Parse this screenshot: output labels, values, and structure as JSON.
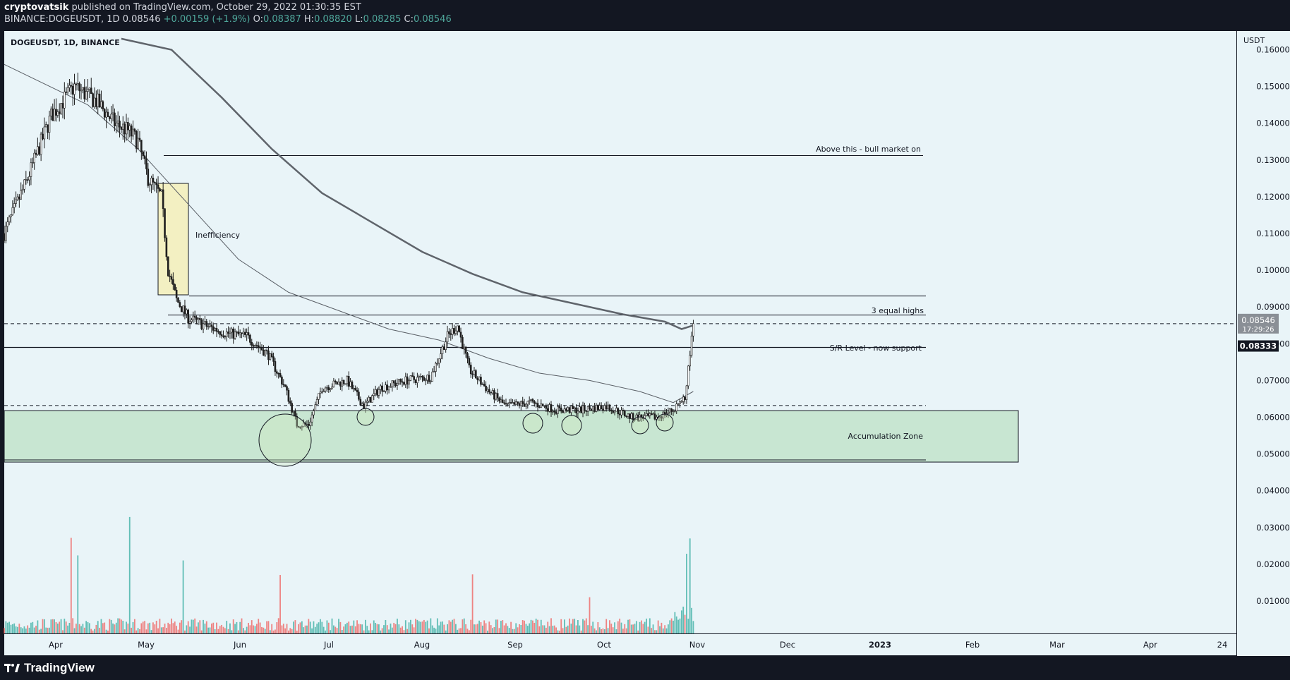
{
  "header": {
    "author": "cryptovatsik",
    "published": " published on TradingView.com, October 29, 2022 01:30:35 EST",
    "symbol_line": "BINANCE:DOGEUSDT, 1D",
    "last": "0.08546",
    "change": "+0.00159 (+1.9%)",
    "o_label": "O:",
    "o": "0.08387",
    "h_label": "H:",
    "h": "0.08820",
    "l_label": "L:",
    "l": "0.08285",
    "c_label": "C:",
    "c": "0.08546"
  },
  "chart_title": "DOGEUSDT, 1D, BINANCE",
  "footer": {
    "brand": "TradingView"
  },
  "colors": {
    "background": "#e9f4f8",
    "up": "#26a69a",
    "down": "#ef5350",
    "candle_body": "#1e1e1e",
    "zone_fill": "#c8e6d2",
    "inefficiency_fill": "#f3f0c2"
  },
  "chart_data": {
    "type": "candlestick",
    "title": "DOGEUSDT, 1D, BINANCE",
    "y_axis_label": "USDT",
    "y_ticks": [
      "0.16000",
      "0.15000",
      "0.14000",
      "0.13000",
      "0.12000",
      "0.11000",
      "0.10000",
      "0.09000",
      "0.08000",
      "0.07000",
      "0.06000",
      "0.05000",
      "0.04000",
      "0.03000",
      "0.02000",
      "0.01000"
    ],
    "x_ticks": [
      "Apr",
      "May",
      "Jun",
      "Jul",
      "Aug",
      "Sep",
      "Oct",
      "Nov",
      "Dec",
      "2023",
      "Feb",
      "Mar",
      "Apr",
      "24"
    ],
    "price_label": "0.08546",
    "countdown": "17:29:26",
    "level_label": "0.08333",
    "annotations": {
      "bull_market": "Above this - bull market on",
      "equal_highs": "3 equal highs",
      "sr_level": "S/R Level - now support",
      "inefficiency": "Inefficiency",
      "accumulation": "Accumulation Zone"
    },
    "levels": {
      "bull_market": 0.1312,
      "top_line": 0.093,
      "equal_highs": 0.0878,
      "current": 0.08546,
      "sr_support": 0.079,
      "dashed_support": 0.0632,
      "zone_top": 0.0618,
      "zone_bottom": 0.0478
    },
    "price_path": [
      [
        0,
        0.11
      ],
      [
        14,
        0.125
      ],
      [
        28,
        0.142
      ],
      [
        42,
        0.15
      ],
      [
        55,
        0.146
      ],
      [
        66,
        0.14
      ],
      [
        74,
        0.138
      ],
      [
        80,
        0.135
      ],
      [
        86,
        0.125
      ],
      [
        94,
        0.12
      ],
      [
        98,
        0.1
      ],
      [
        103,
        0.092
      ],
      [
        110,
        0.087
      ],
      [
        120,
        0.085
      ],
      [
        132,
        0.083
      ],
      [
        145,
        0.082
      ],
      [
        158,
        0.077
      ],
      [
        168,
        0.068
      ],
      [
        175,
        0.058
      ],
      [
        182,
        0.058
      ],
      [
        190,
        0.068
      ],
      [
        205,
        0.07
      ],
      [
        215,
        0.063
      ],
      [
        225,
        0.068
      ],
      [
        240,
        0.07
      ],
      [
        255,
        0.071
      ],
      [
        265,
        0.082
      ],
      [
        271,
        0.085
      ],
      [
        278,
        0.073
      ],
      [
        290,
        0.067
      ],
      [
        300,
        0.063
      ],
      [
        315,
        0.064
      ],
      [
        330,
        0.062
      ],
      [
        345,
        0.062
      ],
      [
        360,
        0.063
      ],
      [
        375,
        0.06
      ],
      [
        390,
        0.06
      ],
      [
        400,
        0.062
      ],
      [
        407,
        0.065
      ],
      [
        412,
        0.085
      ]
    ],
    "ma_fast": [
      [
        0,
        0.156
      ],
      [
        50,
        0.145
      ],
      [
        80,
        0.133
      ],
      [
        110,
        0.118
      ],
      [
        140,
        0.103
      ],
      [
        170,
        0.094
      ],
      [
        200,
        0.089
      ],
      [
        230,
        0.084
      ],
      [
        260,
        0.081
      ],
      [
        290,
        0.076
      ],
      [
        320,
        0.072
      ],
      [
        350,
        0.07
      ],
      [
        380,
        0.067
      ],
      [
        400,
        0.064
      ],
      [
        412,
        0.067
      ]
    ],
    "ma_slow": [
      [
        70,
        0.163
      ],
      [
        100,
        0.16
      ],
      [
        130,
        0.147
      ],
      [
        160,
        0.133
      ],
      [
        190,
        0.121
      ],
      [
        220,
        0.113
      ],
      [
        250,
        0.105
      ],
      [
        280,
        0.099
      ],
      [
        310,
        0.094
      ],
      [
        340,
        0.091
      ],
      [
        370,
        0.088
      ],
      [
        395,
        0.086
      ],
      [
        405,
        0.084
      ],
      [
        412,
        0.085
      ]
    ],
    "volume_spikes": [
      [
        40,
        0.0343
      ],
      [
        44,
        0.028
      ],
      [
        75,
        0.0418
      ],
      [
        107,
        0.0262
      ],
      [
        165,
        0.021
      ],
      [
        280,
        0.0212
      ],
      [
        350,
        0.013
      ],
      [
        408,
        0.0286
      ],
      [
        410,
        0.0341
      ]
    ]
  }
}
